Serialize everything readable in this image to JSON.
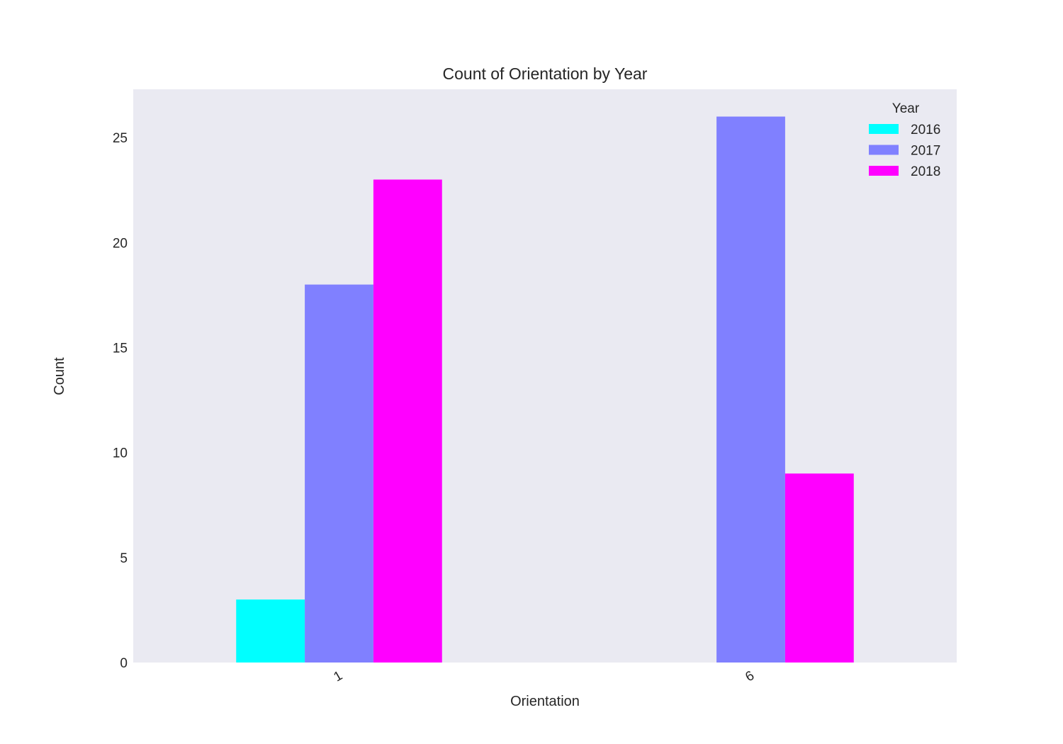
{
  "chart_data": {
    "type": "bar",
    "title": "Count of Orientation by Year",
    "xlabel": "Orientation",
    "ylabel": "Count",
    "categories": [
      "1",
      "6"
    ],
    "series": [
      {
        "name": "2016",
        "values": [
          3,
          0
        ],
        "color": "#00ffff"
      },
      {
        "name": "2017",
        "values": [
          18,
          26
        ],
        "color": "#8080ff"
      },
      {
        "name": "2018",
        "values": [
          23,
          9
        ],
        "color": "#ff00ff"
      }
    ],
    "ylim": [
      0,
      27.3
    ],
    "yticks": [
      0,
      5,
      10,
      15,
      20,
      25
    ],
    "legend": {
      "title": "Year",
      "placement": "top-right"
    },
    "grid": false,
    "plot_background": "#eaeaf2"
  }
}
